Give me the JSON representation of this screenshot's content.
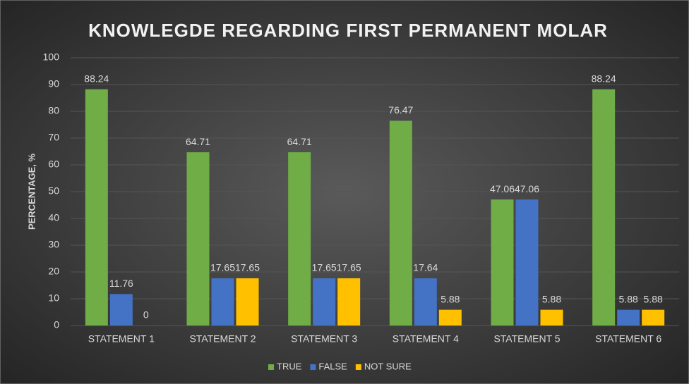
{
  "chart_data": {
    "type": "bar",
    "title": "KNOWLEGDE REGARDING FIRST PERMANENT MOLAR",
    "y_label": "PERCENTAGE, %",
    "categories": [
      "STATEMENT 1",
      "STATEMENT 2",
      "STATEMENT 3",
      "STATEMENT 4",
      "STATEMENT 5",
      "STATEMENT 6"
    ],
    "series": [
      {
        "name": "TRUE",
        "color": "#70ad47",
        "values": [
          88.24,
          64.71,
          64.71,
          76.47,
          47.06,
          88.24
        ]
      },
      {
        "name": "FALSE",
        "color": "#4472c4",
        "values": [
          11.76,
          17.65,
          17.65,
          17.64,
          47.06,
          5.88
        ]
      },
      {
        "name": "NOT SURE",
        "color": "#ffc000",
        "values": [
          0,
          17.65,
          17.65,
          5.88,
          5.88,
          5.88
        ]
      }
    ],
    "ylim": [
      0,
      100
    ],
    "yticks": [
      0,
      10,
      20,
      30,
      40,
      50,
      60,
      70,
      80,
      90,
      100
    ],
    "grid": true,
    "legend": "bottom"
  }
}
